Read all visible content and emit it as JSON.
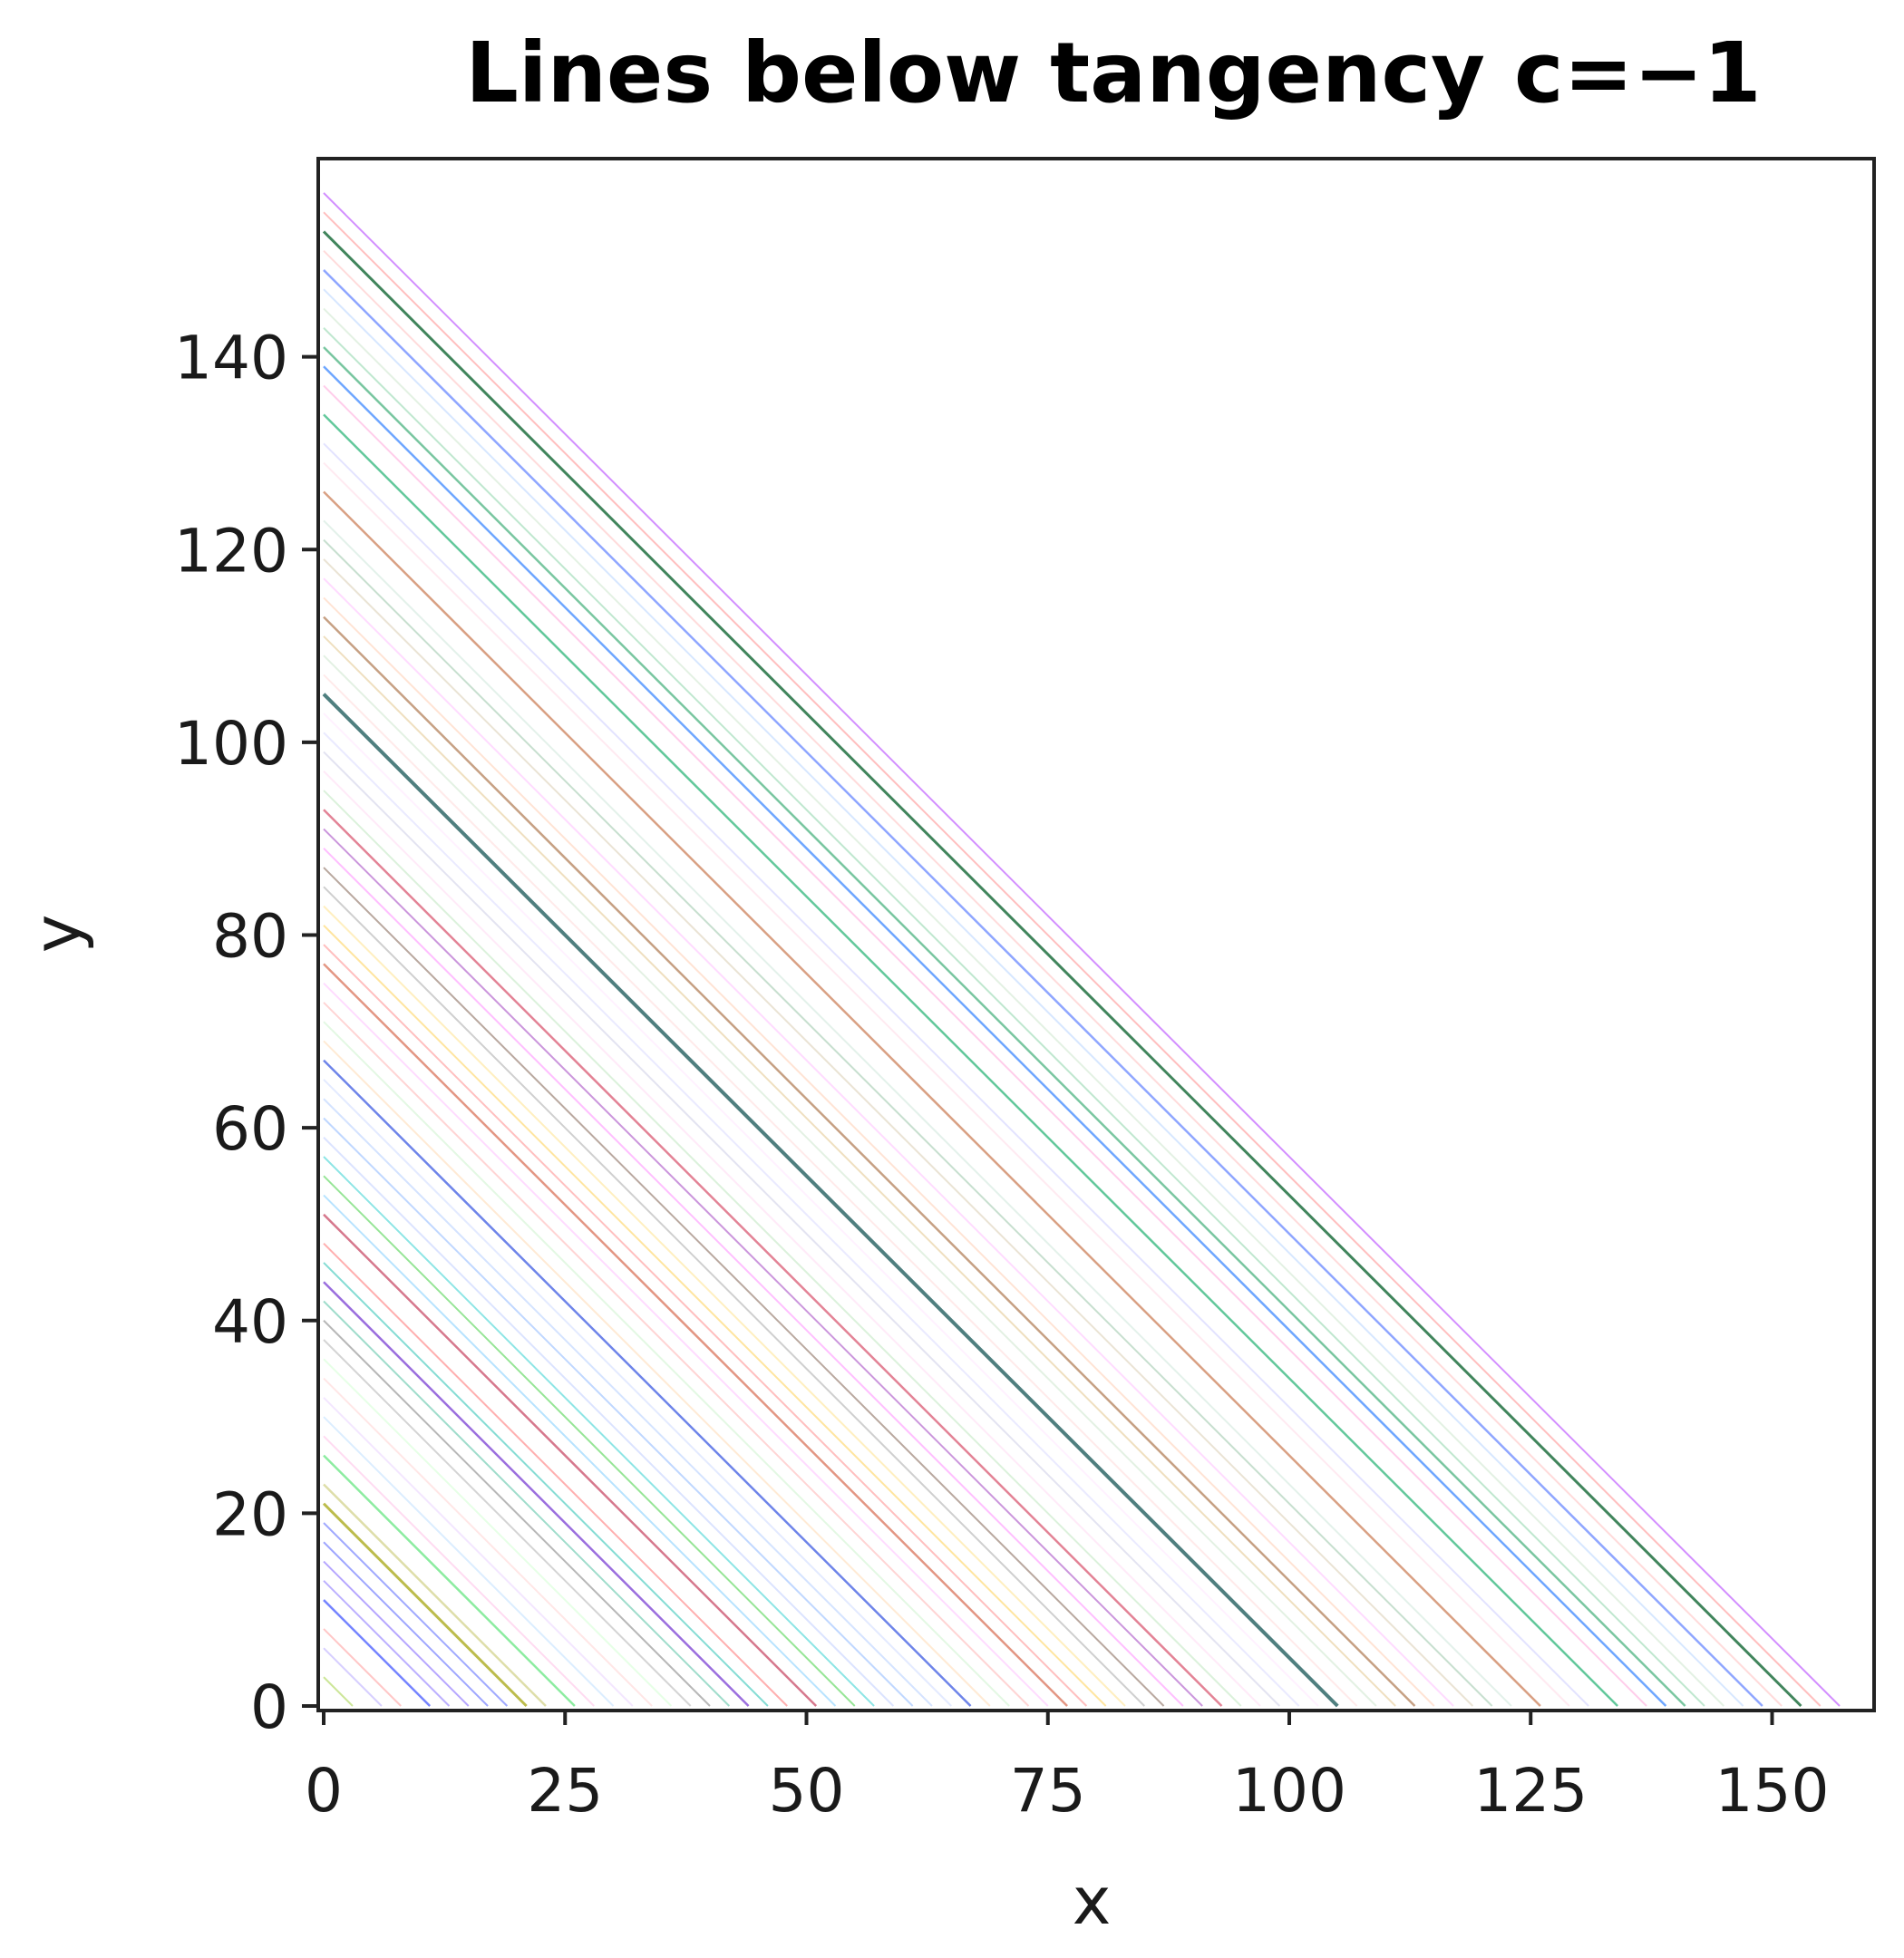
{
  "chart_data": {
    "type": "line",
    "title": "Lines below tangency c=−1",
    "xlabel": "x",
    "ylabel": "y",
    "xlim": [
      0,
      160
    ],
    "ylim": [
      0,
      160
    ],
    "x_ticks": [
      0,
      25,
      50,
      75,
      100,
      125,
      150
    ],
    "x_tick_labels": [
      "0",
      "25",
      "50",
      "75",
      "100",
      "125",
      "150"
    ],
    "y_ticks": [
      0,
      20,
      40,
      60,
      80,
      100,
      120,
      140
    ],
    "y_tick_labels": [
      "0",
      "20",
      "40",
      "60",
      "80",
      "100",
      "120",
      "140"
    ],
    "grid": false,
    "legend": "none",
    "line_slope": -1,
    "series": [
      {
        "intercept": 3,
        "color": "#9acd32",
        "opacity": 0.5,
        "width": 2
      },
      {
        "intercept": 6,
        "color": "#b0a0ff",
        "opacity": 0.5,
        "width": 2
      },
      {
        "intercept": 8,
        "color": "#ff9090",
        "opacity": 0.5,
        "width": 2
      },
      {
        "intercept": 11,
        "color": "#3a50ff",
        "opacity": 0.7,
        "width": 2.5
      },
      {
        "intercept": 13,
        "color": "#8f7bff",
        "opacity": 0.6,
        "width": 2
      },
      {
        "intercept": 15,
        "color": "#7a5cff",
        "opacity": 0.55,
        "width": 2
      },
      {
        "intercept": 17,
        "color": "#5f6bff",
        "opacity": 0.6,
        "width": 2
      },
      {
        "intercept": 19,
        "color": "#6070ff",
        "opacity": 0.6,
        "width": 2
      },
      {
        "intercept": 21,
        "color": "#a0a000",
        "opacity": 0.7,
        "width": 3
      },
      {
        "intercept": 23,
        "color": "#c8c870",
        "opacity": 0.6,
        "width": 2.5
      },
      {
        "intercept": 26,
        "color": "#40e060",
        "opacity": 0.6,
        "width": 2.5
      },
      {
        "intercept": 28,
        "color": "#ffb0e0",
        "opacity": 0.45,
        "width": 2
      },
      {
        "intercept": 30,
        "color": "#b0d8ff",
        "opacity": 0.45,
        "width": 2
      },
      {
        "intercept": 32,
        "color": "#e0c0ff",
        "opacity": 0.4,
        "width": 2
      },
      {
        "intercept": 34,
        "color": "#ffc0c0",
        "opacity": 0.4,
        "width": 2
      },
      {
        "intercept": 36,
        "color": "#c0ffc0",
        "opacity": 0.4,
        "width": 2
      },
      {
        "intercept": 38,
        "color": "#a0a0a0",
        "opacity": 0.45,
        "width": 2
      },
      {
        "intercept": 40,
        "color": "#707070",
        "opacity": 0.5,
        "width": 2
      },
      {
        "intercept": 42,
        "color": "#50c0a0",
        "opacity": 0.55,
        "width": 2
      },
      {
        "intercept": 44,
        "color": "#7030d0",
        "opacity": 0.7,
        "width": 2.5
      },
      {
        "intercept": 46,
        "color": "#20c0b0",
        "opacity": 0.55,
        "width": 2
      },
      {
        "intercept": 48,
        "color": "#ff6060",
        "opacity": 0.5,
        "width": 2
      },
      {
        "intercept": 51,
        "color": "#c03050",
        "opacity": 0.65,
        "width": 2.5
      },
      {
        "intercept": 53,
        "color": "#60c0ff",
        "opacity": 0.45,
        "width": 2
      },
      {
        "intercept": 55,
        "color": "#40d040",
        "opacity": 0.55,
        "width": 2
      },
      {
        "intercept": 57,
        "color": "#30d0d0",
        "opacity": 0.55,
        "width": 2
      },
      {
        "intercept": 59,
        "color": "#b0c0ff",
        "opacity": 0.45,
        "width": 2
      },
      {
        "intercept": 61,
        "color": "#80b0ff",
        "opacity": 0.5,
        "width": 2
      },
      {
        "intercept": 63,
        "color": "#a0c0ff",
        "opacity": 0.45,
        "width": 2
      },
      {
        "intercept": 65,
        "color": "#c0d0ff",
        "opacity": 0.45,
        "width": 2
      },
      {
        "intercept": 67,
        "color": "#3050e0",
        "opacity": 0.7,
        "width": 2.5
      },
      {
        "intercept": 69,
        "color": "#ffd0a0",
        "opacity": 0.45,
        "width": 2
      },
      {
        "intercept": 71,
        "color": "#c0f0c0",
        "opacity": 0.45,
        "width": 2
      },
      {
        "intercept": 73,
        "color": "#ffa0a0",
        "opacity": 0.45,
        "width": 2
      },
      {
        "intercept": 75,
        "color": "#ffb0ff",
        "opacity": 0.45,
        "width": 2
      },
      {
        "intercept": 77,
        "color": "#d05030",
        "opacity": 0.6,
        "width": 2.5
      },
      {
        "intercept": 79,
        "color": "#ff8080",
        "opacity": 0.5,
        "width": 2
      },
      {
        "intercept": 81,
        "color": "#ffd050",
        "opacity": 0.55,
        "width": 2
      },
      {
        "intercept": 83,
        "color": "#ffe080",
        "opacity": 0.5,
        "width": 2
      },
      {
        "intercept": 85,
        "color": "#a0a0a0",
        "opacity": 0.5,
        "width": 2
      },
      {
        "intercept": 87,
        "color": "#806050",
        "opacity": 0.55,
        "width": 2
      },
      {
        "intercept": 89,
        "color": "#ff80ff",
        "opacity": 0.5,
        "width": 2
      },
      {
        "intercept": 91,
        "color": "#a040c0",
        "opacity": 0.55,
        "width": 2
      },
      {
        "intercept": 93,
        "color": "#d03050",
        "opacity": 0.6,
        "width": 2.5
      },
      {
        "intercept": 95,
        "color": "#b0e0b0",
        "opacity": 0.45,
        "width": 2
      },
      {
        "intercept": 97,
        "color": "#ffd0f0",
        "opacity": 0.45,
        "width": 2
      },
      {
        "intercept": 99,
        "color": "#c0c0e0",
        "opacity": 0.45,
        "width": 2
      },
      {
        "intercept": 101,
        "color": "#d0d0ff",
        "opacity": 0.45,
        "width": 2
      },
      {
        "intercept": 103,
        "color": "#ffe0ff",
        "opacity": 0.45,
        "width": 2
      },
      {
        "intercept": 105,
        "color": "#306868",
        "opacity": 0.85,
        "width": 4
      },
      {
        "intercept": 107,
        "color": "#ffd0d0",
        "opacity": 0.45,
        "width": 2
      },
      {
        "intercept": 109,
        "color": "#c0e0c0",
        "opacity": 0.45,
        "width": 2
      },
      {
        "intercept": 111,
        "color": "#e0c080",
        "opacity": 0.5,
        "width": 2
      },
      {
        "intercept": 113,
        "color": "#a06030",
        "opacity": 0.6,
        "width": 2.5
      },
      {
        "intercept": 115,
        "color": "#ffc0a0",
        "opacity": 0.45,
        "width": 2
      },
      {
        "intercept": 117,
        "color": "#ffb0ff",
        "opacity": 0.45,
        "width": 2
      },
      {
        "intercept": 119,
        "color": "#d0c0a0",
        "opacity": 0.45,
        "width": 2
      },
      {
        "intercept": 121,
        "color": "#90c0a0",
        "opacity": 0.5,
        "width": 2
      },
      {
        "intercept": 123,
        "color": "#c0e0d0",
        "opacity": 0.45,
        "width": 2
      },
      {
        "intercept": 126,
        "color": "#c06030",
        "opacity": 0.6,
        "width": 2.5
      },
      {
        "intercept": 129,
        "color": "#ffd0e0",
        "opacity": 0.45,
        "width": 2
      },
      {
        "intercept": 131,
        "color": "#c0c0ff",
        "opacity": 0.45,
        "width": 2
      },
      {
        "intercept": 134,
        "color": "#20b070",
        "opacity": 0.7,
        "width": 2.5
      },
      {
        "intercept": 137,
        "color": "#ff90d0",
        "opacity": 0.45,
        "width": 2
      },
      {
        "intercept": 139,
        "color": "#3080ff",
        "opacity": 0.7,
        "width": 2.5
      },
      {
        "intercept": 141,
        "color": "#20a060",
        "opacity": 0.6,
        "width": 2.5
      },
      {
        "intercept": 143,
        "color": "#80d0a0",
        "opacity": 0.5,
        "width": 2
      },
      {
        "intercept": 145,
        "color": "#c0e0c0",
        "opacity": 0.45,
        "width": 2
      },
      {
        "intercept": 147,
        "color": "#b0d0ff",
        "opacity": 0.5,
        "width": 2
      },
      {
        "intercept": 149,
        "color": "#6080ff",
        "opacity": 0.7,
        "width": 2.5
      },
      {
        "intercept": 151,
        "color": "#ffb0b0",
        "opacity": 0.45,
        "width": 2
      },
      {
        "intercept": 153,
        "color": "#207040",
        "opacity": 0.85,
        "width": 3
      },
      {
        "intercept": 155,
        "color": "#ff8080",
        "opacity": 0.5,
        "width": 2
      },
      {
        "intercept": 157,
        "color": "#c060ff",
        "opacity": 0.7,
        "width": 2
      }
    ]
  }
}
